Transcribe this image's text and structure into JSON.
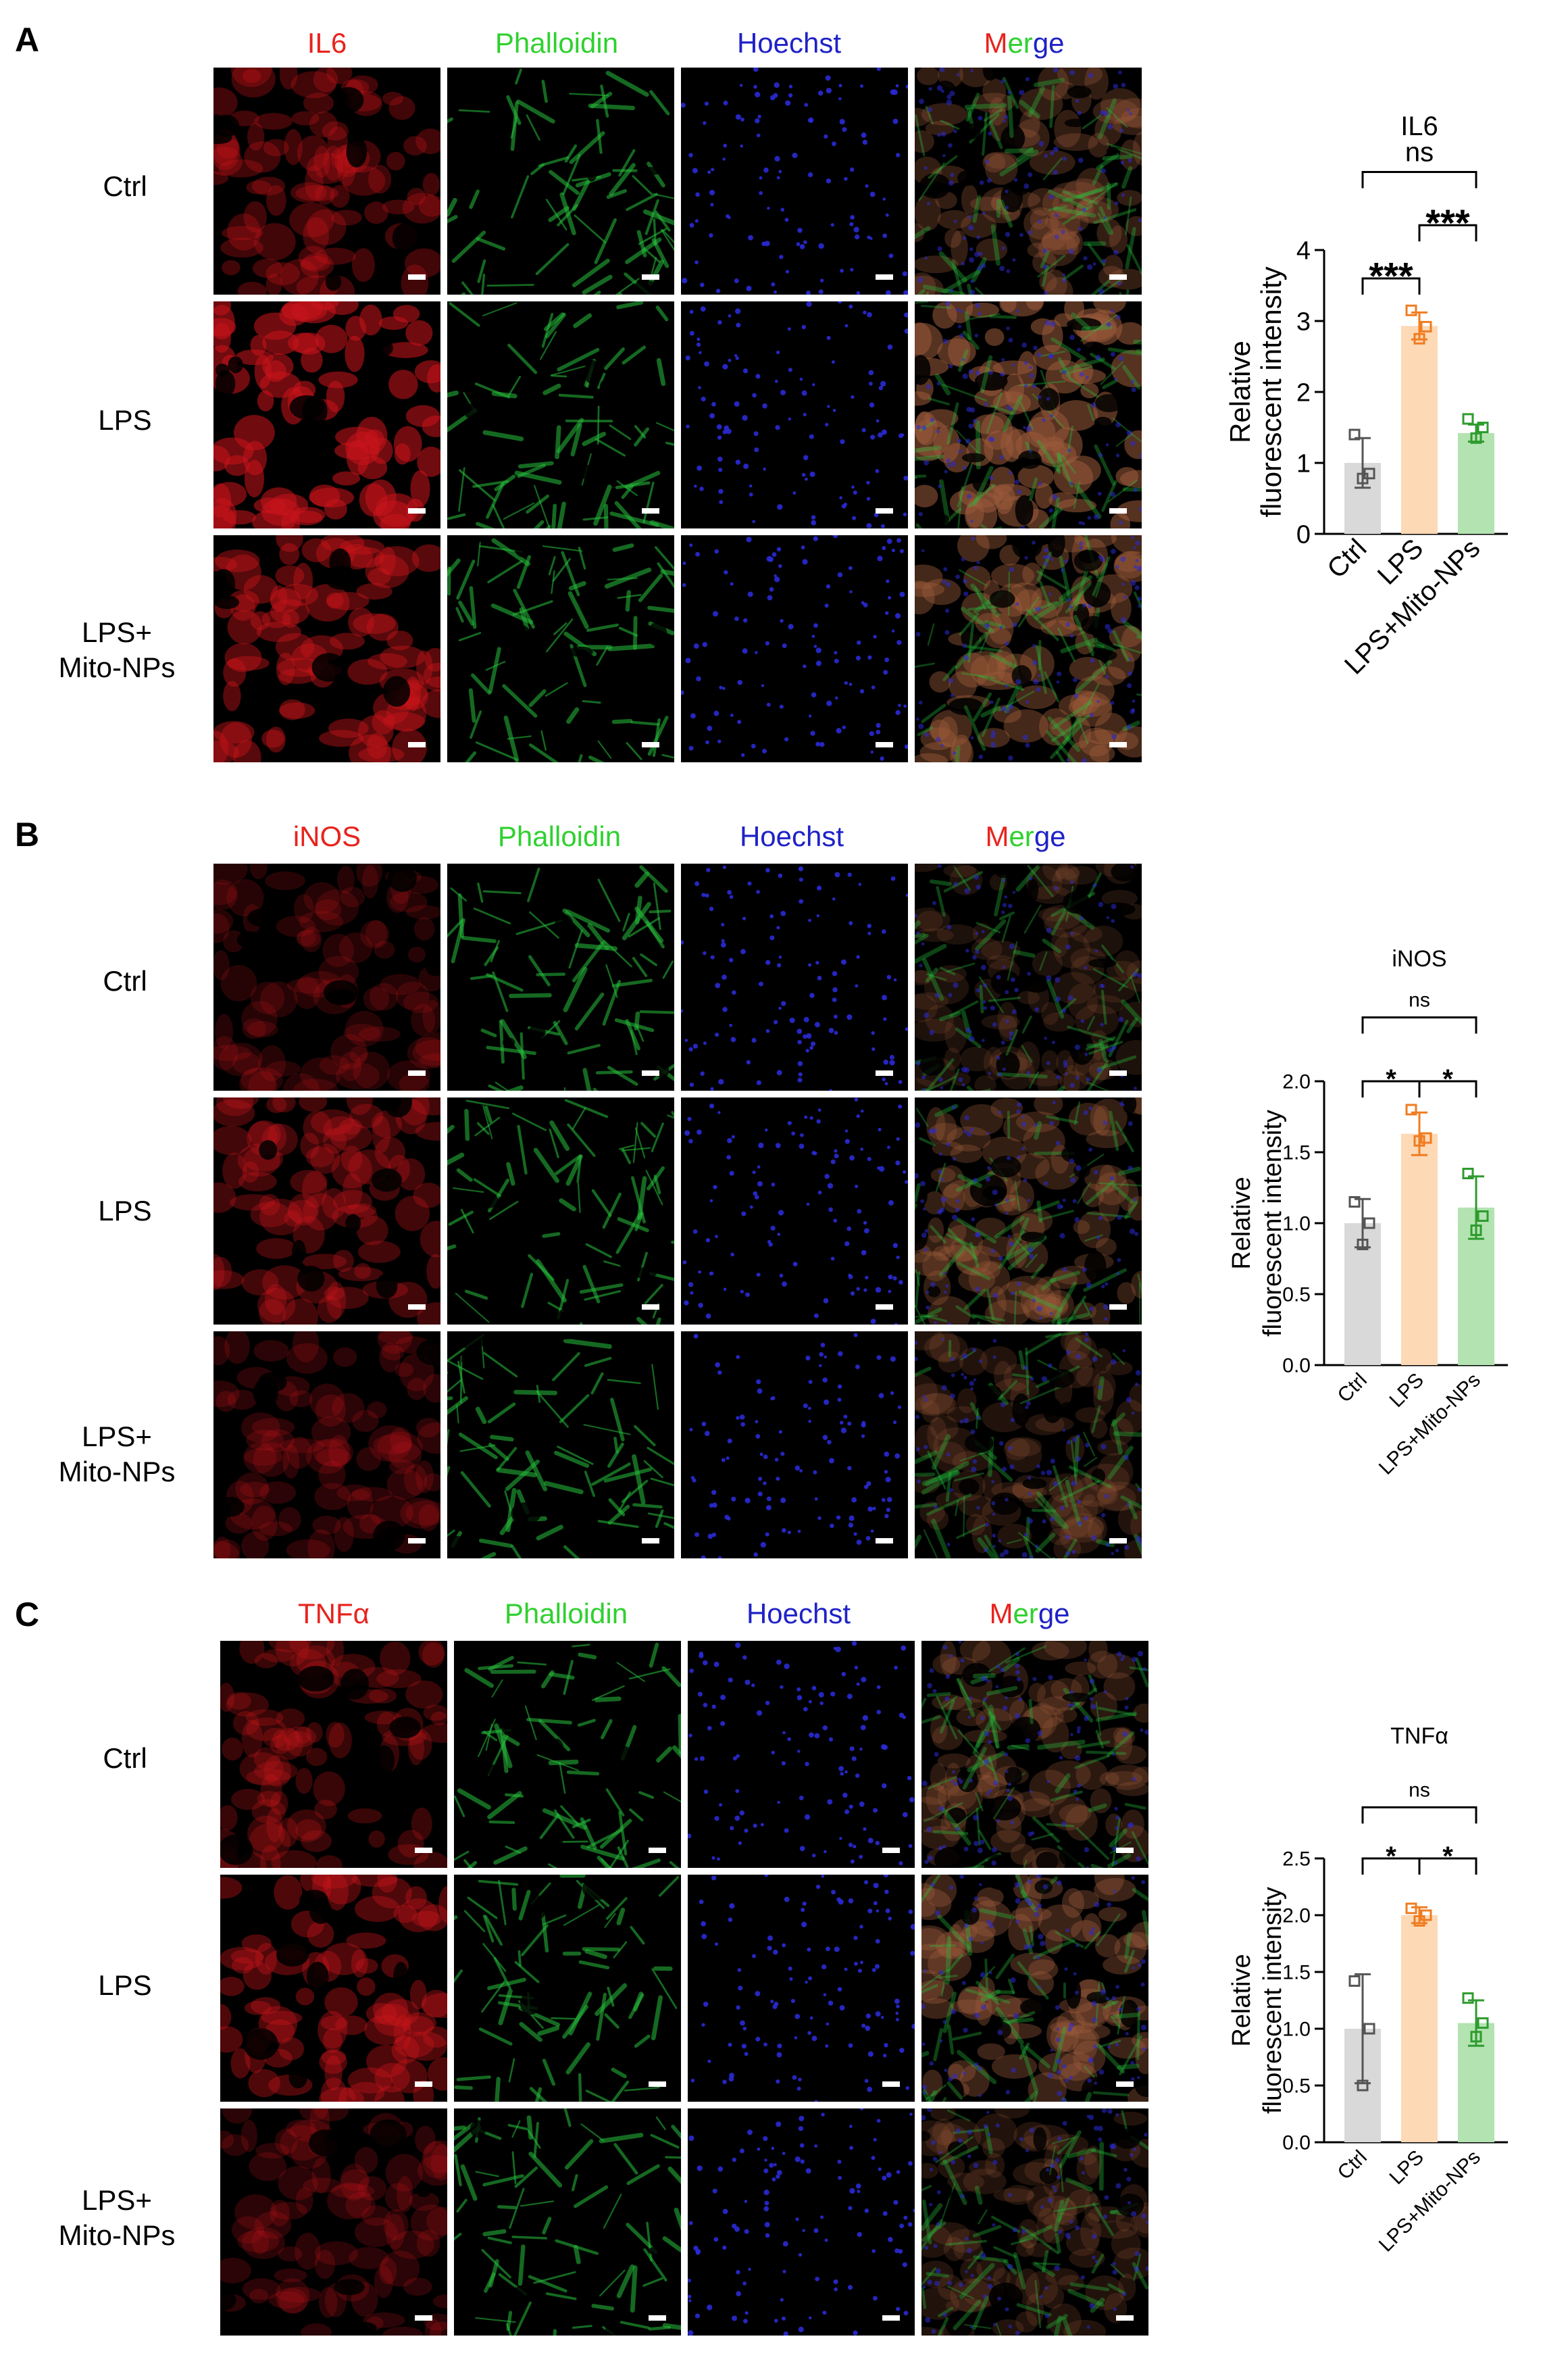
{
  "panels": [
    {
      "letter": "A",
      "stain": "IL6",
      "columns": [
        "IL6",
        "Phalloidin",
        "Hoechst"
      ],
      "merge": {
        "m": "M",
        "e": "er",
        "rest": "ge"
      },
      "rows": [
        {
          "label_line1": "Ctrl",
          "label_line2": ""
        },
        {
          "label_line1": "LPS",
          "label_line2": ""
        },
        {
          "label_line1": "LPS+",
          "label_line2": "Mito-NPs"
        }
      ],
      "intensity": [
        0.9,
        1.6,
        1.25
      ]
    },
    {
      "letter": "B",
      "stain": "iNOS",
      "columns": [
        "iNOS",
        "Phalloidin",
        "Hoechst"
      ],
      "merge": {
        "m": "M",
        "e": "er",
        "rest": "ge"
      },
      "rows": [
        {
          "label_line1": "Ctrl",
          "label_line2": ""
        },
        {
          "label_line1": "LPS",
          "label_line2": ""
        },
        {
          "label_line1": "LPS+",
          "label_line2": "Mito-NPs"
        }
      ],
      "intensity": [
        0.55,
        0.95,
        0.6
      ]
    },
    {
      "letter": "C",
      "stain": "TNFα",
      "columns": [
        "TNFα",
        "Phalloidin",
        "Hoechst"
      ],
      "merge": {
        "m": "M",
        "e": "er",
        "rest": "ge"
      },
      "rows": [
        {
          "label_line1": "Ctrl",
          "label_line2": ""
        },
        {
          "label_line1": "LPS",
          "label_line2": ""
        },
        {
          "label_line1": "LPS+",
          "label_line2": "Mito-NPs"
        }
      ],
      "intensity": [
        0.8,
        1.1,
        0.6
      ]
    }
  ],
  "colors": {
    "ctrl_bar": "#d9d9d9",
    "ctrl_point": "#555555",
    "lps_bar": "#fdd9b5",
    "lps_point": "#f07c21",
    "mito_bar": "#b3e3b0",
    "mito_point": "#2e9b2e",
    "red_channel": "#c8141a",
    "green_channel": "#27c03c",
    "blue_channel": "#2a2ad6"
  },
  "chart_data": [
    {
      "type": "bar",
      "title": "IL6",
      "categories": [
        "Ctrl",
        "LPS",
        "LPS+Mito-NPs"
      ],
      "values": [
        1.0,
        2.93,
        1.42
      ],
      "errors": [
        0.35,
        0.19,
        0.12
      ],
      "points": [
        [
          1.4,
          0.85,
          0.78
        ],
        [
          3.15,
          2.92,
          2.75
        ],
        [
          1.62,
          1.5,
          1.35
        ]
      ],
      "ylabel_line1": "Relative",
      "ylabel_line2": "fluorescent intensity",
      "ylim": [
        0,
        4
      ],
      "yticks": [
        "0",
        "1",
        "2",
        "3",
        "4"
      ],
      "tick_values": [
        0,
        1,
        2,
        3,
        4
      ],
      "comparisons": [
        {
          "from": 0,
          "to": 1,
          "label": "***",
          "level": 3.6
        },
        {
          "from": 1,
          "to": 2,
          "label": "***",
          "level": 4.35
        },
        {
          "from": 0,
          "to": 2,
          "label": "ns",
          "level": 5.1
        }
      ],
      "small_stars": false
    },
    {
      "type": "bar",
      "title": "iNOS",
      "categories": [
        "Ctrl",
        "LPS",
        "LPS+Mito-NPs"
      ],
      "values": [
        1.0,
        1.63,
        1.11
      ],
      "errors": [
        0.17,
        0.15,
        0.22
      ],
      "points": [
        [
          1.15,
          1.0,
          0.85
        ],
        [
          1.8,
          1.6,
          1.58
        ],
        [
          1.35,
          1.05,
          0.95
        ]
      ],
      "ylabel_line1": "Relative",
      "ylabel_line2": "fluorescent intensity",
      "ylim": [
        0,
        2.0
      ],
      "yticks": [
        "0.0",
        "0.5",
        "1.0",
        "1.5",
        "2.0"
      ],
      "tick_values": [
        0,
        0.5,
        1.0,
        1.5,
        2.0
      ],
      "comparisons": [
        {
          "from": 0,
          "to": 1,
          "label": "*",
          "level": 2.0
        },
        {
          "from": 1,
          "to": 2,
          "label": "*",
          "level": 2.0
        },
        {
          "from": 0,
          "to": 2,
          "label": "ns",
          "level": 2.45
        }
      ],
      "small_stars": true
    },
    {
      "type": "bar",
      "title": "TNFα",
      "categories": [
        "Ctrl",
        "LPS",
        "LPS+Mito-NPs"
      ],
      "values": [
        1.0,
        2.0,
        1.05
      ],
      "errors": [
        0.48,
        0.07,
        0.2
      ],
      "points": [
        [
          1.42,
          1.0,
          0.5
        ],
        [
          2.06,
          2.0,
          1.95
        ],
        [
          1.27,
          1.05,
          0.93
        ]
      ],
      "ylabel_line1": "Relative",
      "ylabel_line2": "fluorescent intensity",
      "ylim": [
        0,
        2.5
      ],
      "yticks": [
        "0.0",
        "0.5",
        "1.0",
        "1.5",
        "2.0",
        "2.5"
      ],
      "tick_values": [
        0,
        0.5,
        1.0,
        1.5,
        2.0,
        2.5
      ],
      "comparisons": [
        {
          "from": 0,
          "to": 1,
          "label": "*",
          "level": 2.5
        },
        {
          "from": 1,
          "to": 2,
          "label": "*",
          "level": 2.5
        },
        {
          "from": 0,
          "to": 2,
          "label": "ns",
          "level": 2.95
        }
      ],
      "small_stars": true
    }
  ]
}
